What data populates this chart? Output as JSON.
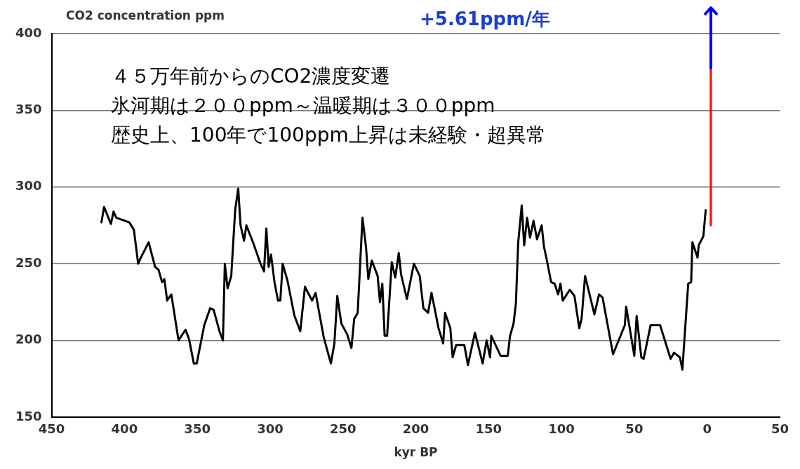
{
  "chart_data": {
    "type": "line",
    "ylabel": "CO2 concentration ppm",
    "xlabel": "kyr BP",
    "annotations": [
      "+5.61ppm/年",
      "４５万年前からのCO2濃度変遷",
      "氷河期は２００ppm～温暖期は３００ppm",
      "歴史上、100年で100ppm上昇は未経験・超異常"
    ],
    "xlim": [
      450,
      -50
    ],
    "xticks": [
      450,
      400,
      350,
      300,
      250,
      200,
      150,
      100,
      50,
      0,
      {
        "value": -50,
        "label": "50"
      }
    ],
    "ylim": [
      150,
      400
    ],
    "yticks": [
      150,
      200,
      250,
      300,
      350,
      400
    ],
    "grid": "y",
    "marker": "none",
    "line_style": "solid",
    "series": [
      {
        "color": "#000000",
        "x": [
          415.8,
          414,
          409.3,
          407.5,
          405.6,
          396.7,
          393.5,
          390.6,
          388.7,
          383.4,
          379,
          376.6,
          374.2,
          372.6,
          370.7,
          367.8,
          362.9,
          358.1,
          355.7,
          352.4,
          350.4,
          345.2,
          341.2,
          338.8,
          334.8,
          332.4,
          331.1,
          329.2,
          326.7,
          324,
          321.9,
          320.3,
          317.9,
          316.3,
          311.4,
          306.6,
          304.2,
          302.6,
          301,
          299.4,
          297,
          294.6,
          293,
          291.4,
          288.1,
          283.3,
          279.3,
          276.1,
          271.2,
          268.8,
          263.2,
          258.3,
          255.9,
          253.9,
          251.1,
          247.1,
          244.2,
          242.3,
          239.9,
          236.6,
          234.2,
          232.6,
          230.2,
          226.2,
          224.6,
          223,
          221.4,
          219.7,
          216.5,
          214.1,
          211.7,
          210.1,
          206.1,
          202.8,
          201.3,
          197.3,
          194.8,
          191.6,
          189.2,
          184.4,
          181.2,
          179.9,
          176.3,
          174.7,
          172.3,
          166.7,
          164.2,
          159.4,
          154.1,
          151.4,
          149,
          148.2,
          141.8,
          136.9,
          135.3,
          132.9,
          131.3,
          129.7,
          127.3,
          125.6,
          123.6,
          121.6,
          119.2,
          116.8,
          113.6,
          112,
          110.4,
          107.1,
          104.7,
          102.3,
          100.7,
          99.1,
          94.3,
          91.1,
          87.8,
          86.2,
          83.8,
          77.4,
          74.2,
          71.8,
          64.6,
          56.5,
          55.6,
          50,
          48.4,
          45.2,
          43.6,
          38.8,
          32.3,
          25.1,
          22.7,
          18.7,
          17,
          13,
          11,
          10.1,
          6.6,
          5.8,
          2.6,
          1
        ],
        "values": [
          277,
          287,
          276,
          284,
          280,
          277,
          272,
          250,
          254,
          264,
          248,
          246,
          238,
          240,
          226,
          230,
          200,
          207,
          201,
          185,
          185,
          210,
          221,
          220,
          206,
          200,
          250,
          234,
          242,
          285,
          299,
          275,
          265,
          275,
          263,
          250,
          245,
          273,
          248,
          256,
          238,
          226,
          226,
          250,
          239,
          216,
          206,
          235,
          226,
          231,
          202,
          185,
          198,
          229,
          211,
          204,
          195,
          214,
          218,
          280,
          261,
          240,
          252,
          242,
          225,
          237,
          203,
          203,
          251,
          241,
          257,
          243,
          227,
          243,
          250,
          242,
          221,
          218,
          231,
          208,
          198,
          218,
          208,
          189,
          197,
          197,
          184,
          205,
          185,
          200,
          189,
          203,
          190,
          190,
          203,
          211,
          224,
          264,
          288,
          262,
          280,
          267,
          278,
          266,
          275,
          261,
          254,
          238,
          237,
          230,
          237,
          226,
          233,
          229,
          208,
          214,
          242,
          217,
          230,
          228,
          191,
          210,
          222,
          190,
          216,
          189,
          188,
          210,
          210,
          188,
          192,
          189,
          181,
          237,
          238,
          264,
          254,
          262,
          268,
          285
        ]
      },
      {
        "color": "#ff0000",
        "x": [
          -2.5,
          -2.5
        ],
        "values": [
          275,
          377
        ]
      }
    ]
  }
}
